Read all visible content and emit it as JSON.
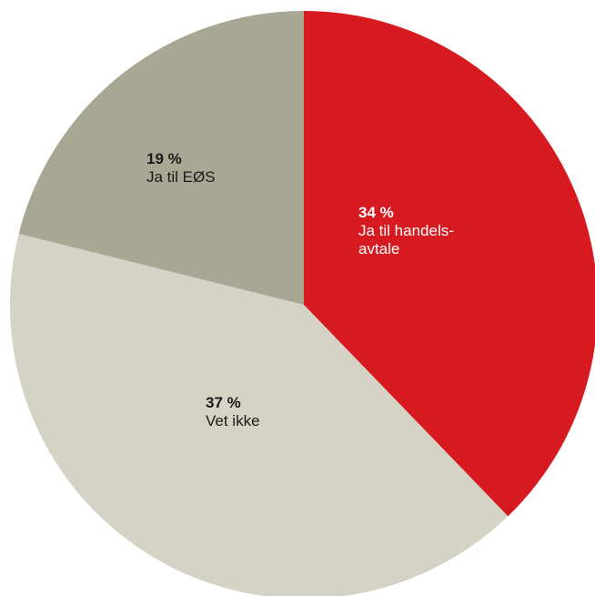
{
  "chart_data": {
    "type": "pie",
    "title": "",
    "slices": [
      {
        "label": "Ja til handelsavtale",
        "display_label": "Ja til handels-\navtale",
        "percent_text": "34 %",
        "value": 34,
        "color": "#d71920",
        "text_color": "#ffffff"
      },
      {
        "label": "Vet ikke",
        "display_label": "Vet ikke",
        "percent_text": "37 %",
        "value": 37,
        "color": "#d4d3c5",
        "text_color": "#1a1a1a"
      },
      {
        "label": "Ja til EØS",
        "display_label": "Ja til EØS",
        "percent_text": "19 %",
        "value": 19,
        "color": "#a8a793",
        "text_color": "#1a1a1a"
      }
    ],
    "start_angle_deg": 0,
    "direction": "clockwise"
  }
}
